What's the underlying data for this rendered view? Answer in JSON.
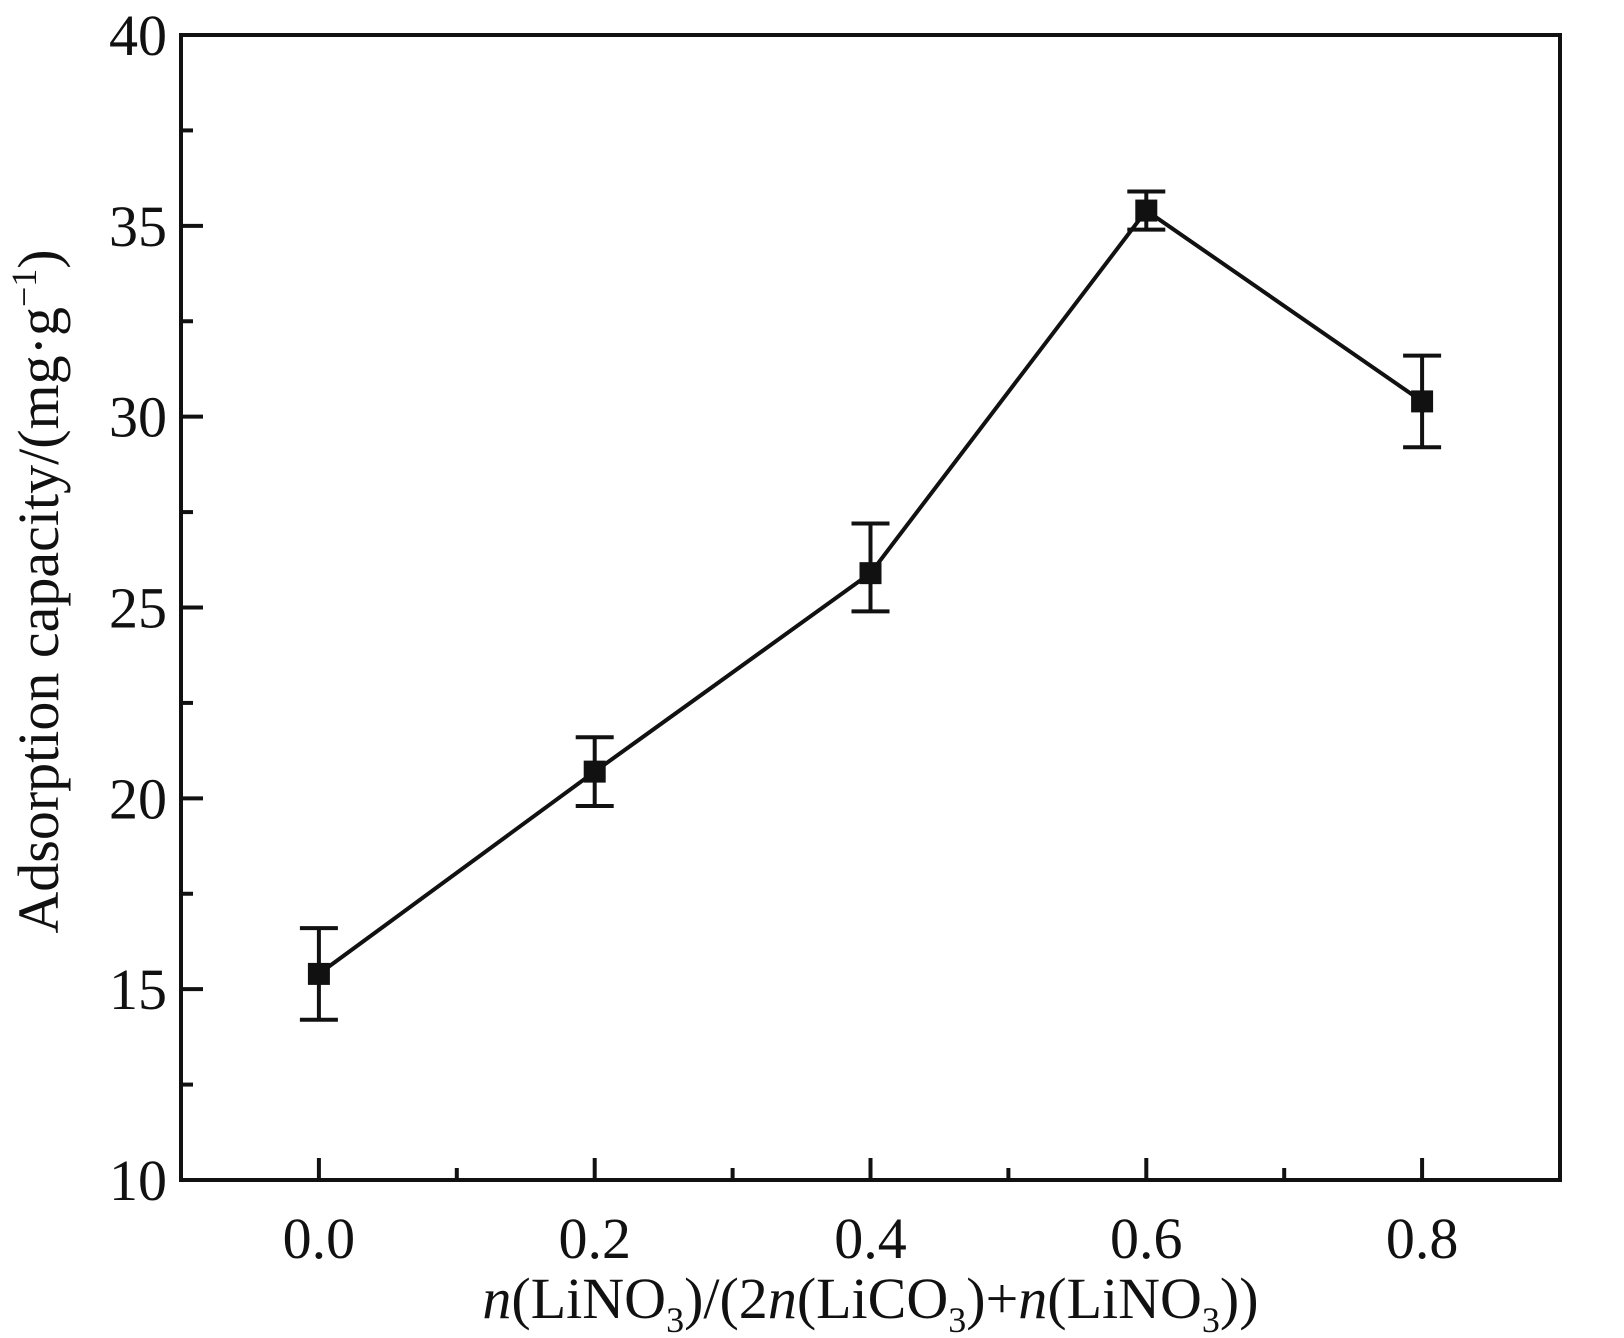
{
  "chart_data": {
    "type": "line",
    "xlabel": {
      "parts": [
        {
          "t": "n",
          "style": "italic"
        },
        {
          "t": "(LiNO"
        },
        {
          "t": "3",
          "style": "sub"
        },
        {
          "t": ")/(2"
        },
        {
          "t": "n",
          "style": "italic"
        },
        {
          "t": "(LiCO"
        },
        {
          "t": "3",
          "style": "sub"
        },
        {
          "t": ")+"
        },
        {
          "t": "n",
          "style": "italic"
        },
        {
          "t": "(LiNO"
        },
        {
          "t": "3",
          "style": "sub"
        },
        {
          "t": "))"
        }
      ]
    },
    "ylabel": {
      "parts": [
        {
          "t": "Adsorption capacity/(mg·g"
        },
        {
          "t": "−1",
          "style": "sup"
        },
        {
          "t": ")"
        }
      ]
    },
    "xlim": [
      -0.1,
      0.9
    ],
    "ylim": [
      10,
      40
    ],
    "xticks": [
      0.0,
      0.2,
      0.4,
      0.6,
      0.8
    ],
    "xtick_labels": [
      "0.0",
      "0.2",
      "0.4",
      "0.6",
      "0.8"
    ],
    "xminor": [
      -0.1,
      0.1,
      0.3,
      0.5,
      0.7,
      0.9
    ],
    "yticks": [
      10,
      15,
      20,
      25,
      30,
      35,
      40
    ],
    "ytick_labels": [
      "10",
      "15",
      "20",
      "25",
      "30",
      "35",
      "40"
    ],
    "yminor": [
      12.5,
      17.5,
      22.5,
      27.5,
      32.5,
      37.5
    ],
    "grid": false,
    "series": [
      {
        "x": [
          0.0,
          0.2,
          0.4,
          0.6,
          0.8
        ],
        "y": [
          15.4,
          20.7,
          25.9,
          35.4,
          30.4
        ],
        "err_low": [
          14.2,
          19.8,
          24.9,
          34.9,
          29.2
        ],
        "err_high": [
          16.6,
          21.6,
          27.2,
          35.9,
          31.6
        ],
        "marker": "square",
        "color": "#111111"
      }
    ]
  }
}
